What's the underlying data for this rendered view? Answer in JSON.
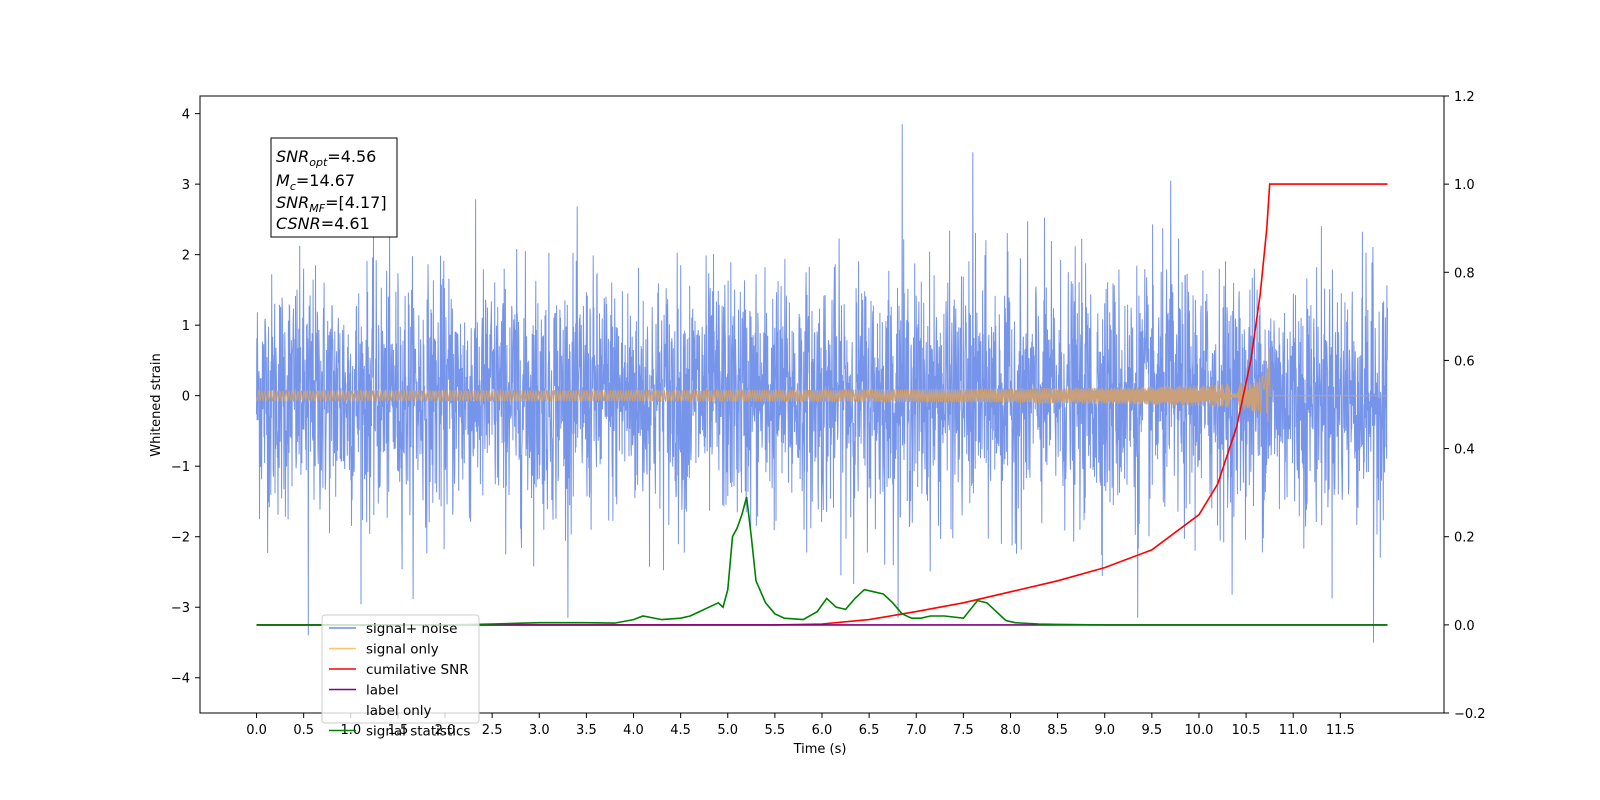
{
  "chart_data": {
    "type": "line",
    "xlabel": "Time (s)",
    "ylabel": "Whitened strain",
    "xlim": [
      -0.6,
      12.6
    ],
    "ylim": [
      -4.5,
      4.25
    ],
    "y2lim": [
      -0.2,
      1.2
    ],
    "x_ticks": [
      "0.0",
      "0.5",
      "1.0",
      "1.5",
      "2.0",
      "2.5",
      "3.0",
      "3.5",
      "4.0",
      "4.5",
      "5.0",
      "5.5",
      "6.0",
      "6.5",
      "7.0",
      "7.5",
      "8.0",
      "8.5",
      "9.0",
      "9.5",
      "10.0",
      "10.5",
      "11.0",
      "11.5"
    ],
    "y_ticks": [
      "4",
      "3",
      "2",
      "1",
      "0",
      "−1",
      "−2",
      "−3",
      "−4"
    ],
    "y2_ticks": [
      "1.2",
      "1.0",
      "0.8",
      "0.6",
      "0.4",
      "0.2",
      "0.0",
      "−0.2"
    ],
    "grid": false,
    "legend_placement": "lower-left",
    "annotation": {
      "snr_opt": {
        "main": "SNR",
        "sub": "opt",
        "value": "=4.56"
      },
      "mc": {
        "main": "M",
        "sub": "c",
        "value": "=14.67"
      },
      "snr_mf": {
        "main": "SNR",
        "sub": "MF",
        "value": "=[4.17]"
      },
      "csnr": {
        "main": "CSNR",
        "sub": "",
        "value": "=4.61"
      }
    },
    "series": [
      {
        "name": "signal+ noise",
        "color": "#6f8ee8",
        "axis": "left",
        "kind": "noise",
        "t_range": [
          0.0,
          12.0
        ],
        "envelope": {
          "typical_max": 2.2,
          "typical_min": -2.0,
          "peak_max": 3.85,
          "peak_min": -3.5
        },
        "peaks": [
          [
            6.85,
            3.85
          ],
          [
            7.6,
            3.45
          ],
          [
            9.7,
            3.05
          ],
          [
            11.85,
            -3.5
          ],
          [
            0.55,
            -3.4
          ],
          [
            9.35,
            -3.15
          ]
        ]
      },
      {
        "name": "signal only",
        "color": "#ffc470",
        "axis": "left",
        "kind": "chirp",
        "merger_time": 10.75,
        "peak_amplitude": 0.78
      },
      {
        "name": "cumilative SNR",
        "color": "#ff0000",
        "axis": "right",
        "x": [
          0.0,
          5.5,
          6.0,
          6.5,
          7.0,
          7.5,
          8.0,
          8.5,
          9.0,
          9.5,
          10.0,
          10.2,
          10.4,
          10.55,
          10.65,
          10.72,
          10.75,
          11.0,
          11.5,
          12.0
        ],
        "values": [
          0.0,
          0.0,
          0.002,
          0.012,
          0.03,
          0.05,
          0.075,
          0.1,
          0.13,
          0.17,
          0.25,
          0.32,
          0.45,
          0.6,
          0.75,
          0.9,
          1.0,
          1.0,
          1.0,
          1.0
        ]
      },
      {
        "name": "label",
        "color": "#800080",
        "axis": "right",
        "x": [
          0.0,
          12.0
        ],
        "values": [
          0.0,
          0.0
        ]
      },
      {
        "name": "label only",
        "color": "#ffffff",
        "axis": "right",
        "x": [],
        "values": []
      },
      {
        "name": "signal statistics",
        "color": "#008000",
        "axis": "right",
        "x": [
          0.0,
          2.0,
          2.5,
          3.0,
          3.5,
          3.8,
          4.0,
          4.1,
          4.3,
          4.5,
          4.6,
          4.7,
          4.8,
          4.9,
          4.95,
          5.0,
          5.05,
          5.1,
          5.15,
          5.2,
          5.25,
          5.3,
          5.4,
          5.5,
          5.6,
          5.8,
          5.95,
          6.05,
          6.15,
          6.25,
          6.35,
          6.45,
          6.55,
          6.65,
          6.75,
          6.85,
          6.95,
          7.05,
          7.15,
          7.3,
          7.5,
          7.65,
          7.75,
          7.85,
          7.95,
          8.05,
          8.3,
          8.5,
          9.0,
          10.0,
          11.0,
          12.0
        ],
        "values": [
          0.0,
          0.0,
          0.002,
          0.005,
          0.005,
          0.004,
          0.012,
          0.02,
          0.012,
          0.015,
          0.02,
          0.03,
          0.04,
          0.05,
          0.04,
          0.08,
          0.2,
          0.22,
          0.25,
          0.29,
          0.2,
          0.1,
          0.05,
          0.025,
          0.015,
          0.012,
          0.03,
          0.06,
          0.04,
          0.035,
          0.06,
          0.08,
          0.075,
          0.07,
          0.05,
          0.025,
          0.015,
          0.015,
          0.02,
          0.02,
          0.015,
          0.055,
          0.05,
          0.03,
          0.01,
          0.005,
          0.002,
          0.001,
          0.0,
          0.0,
          0.0,
          0.0
        ]
      }
    ]
  }
}
